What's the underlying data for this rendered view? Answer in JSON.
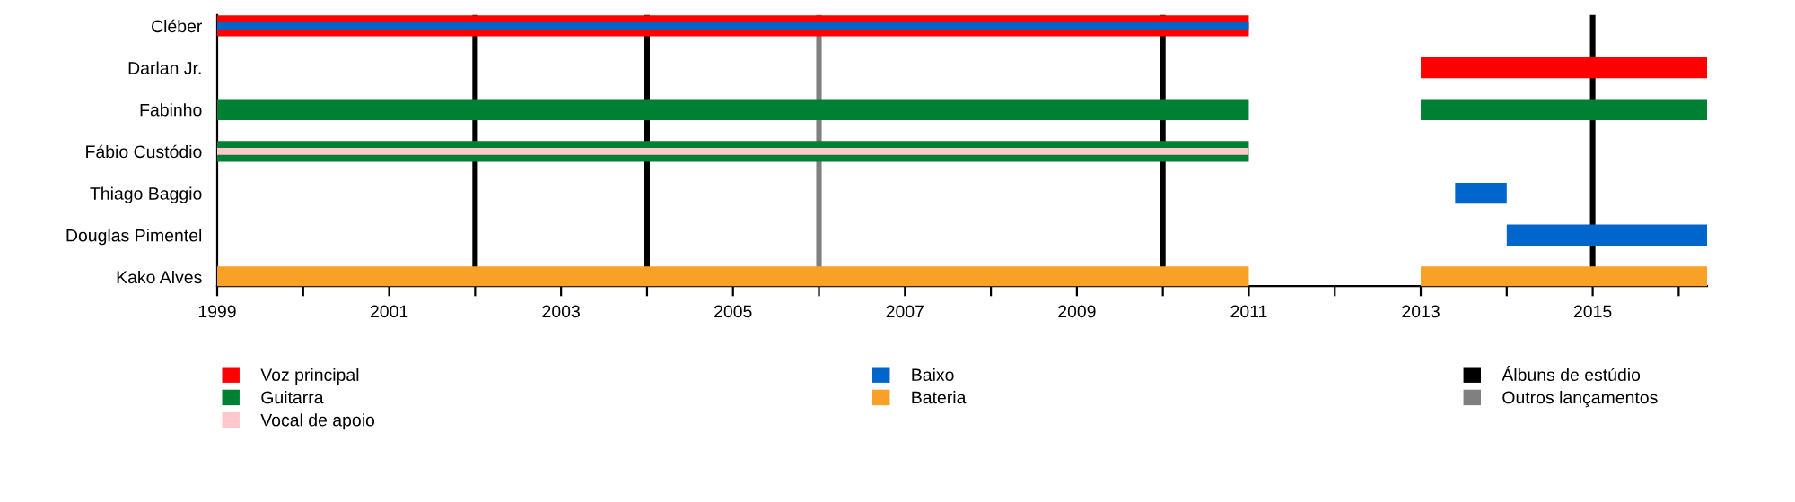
{
  "chart_data": {
    "type": "bar",
    "orientation": "horizontal",
    "categories": [
      "Cléber",
      "Darlan Jr.",
      "Fabinho",
      "Fábio Custódio",
      "Thiago Baggio",
      "Douglas Pimentel",
      "Kako Alves"
    ],
    "series": [
      {
        "name": "Voz principal",
        "color": "#ff0000",
        "base": [
          1999,
          2013,
          null,
          null,
          null,
          null,
          null
        ],
        "values": [
          12,
          3.33,
          null,
          null,
          null,
          null,
          null
        ]
      },
      {
        "name": "Guitarra",
        "color": "#008033",
        "base": [
          null,
          null,
          1999,
          1999,
          null,
          null,
          null
        ],
        "values": [
          null,
          null,
          12,
          12,
          null,
          null,
          null
        ]
      },
      {
        "color": "#008033",
        "base": [
          null,
          null,
          2013,
          null,
          null,
          null,
          null
        ],
        "values": [
          null,
          null,
          3.33,
          null,
          null,
          null,
          null
        ]
      },
      {
        "name": "Vocal de apoio",
        "color": "#ffc8cc",
        "base": [
          null,
          null,
          null,
          1999,
          null,
          null,
          null
        ],
        "values": [
          null,
          null,
          null,
          12,
          null,
          null,
          null
        ]
      },
      {
        "name": "Baixo",
        "color": "#0066cc",
        "base": [
          1999,
          null,
          null,
          null,
          2013.4,
          2014,
          null
        ],
        "values": [
          12,
          null,
          null,
          null,
          0.6,
          2.33,
          null
        ]
      },
      {
        "name": "Bateria",
        "color": "#f9a026",
        "base": [
          null,
          null,
          null,
          null,
          null,
          null,
          1999
        ],
        "values": [
          null,
          null,
          null,
          null,
          null,
          null,
          12
        ]
      },
      {
        "color": "#f9a026",
        "base": [
          null,
          null,
          null,
          null,
          null,
          null,
          2013
        ],
        "values": [
          null,
          null,
          null,
          null,
          null,
          null,
          3.33
        ]
      }
    ],
    "ref_lines": [
      {
        "axis": "x",
        "value": 2002,
        "label": "Álbuns de estúdio",
        "color": "#000000"
      },
      {
        "axis": "x",
        "value": 2004,
        "color": "#000000"
      },
      {
        "axis": "x",
        "value": 2010,
        "color": "#000000"
      },
      {
        "axis": "x",
        "value": 2015,
        "color": "#000000"
      },
      {
        "axis": "x",
        "value": 2006,
        "label": "Outros lançamentos",
        "color": "#808080"
      }
    ],
    "xlim": [
      1999,
      2016.33
    ],
    "xticks": [
      1999,
      {
        "value": 2000,
        "label": null
      },
      2001,
      {
        "value": 2002,
        "label": null
      },
      2003,
      {
        "value": 2004,
        "label": null
      },
      2005,
      {
        "value": 2006,
        "label": null
      },
      2007,
      {
        "value": 2008,
        "label": null
      },
      2009,
      {
        "value": 2010,
        "label": null
      },
      2011,
      {
        "value": 2012,
        "label": null
      },
      2013,
      {
        "value": 2014,
        "label": null
      },
      2015,
      {
        "value": 2016,
        "label": null
      }
    ],
    "legend": "bottom",
    "grid": false
  }
}
